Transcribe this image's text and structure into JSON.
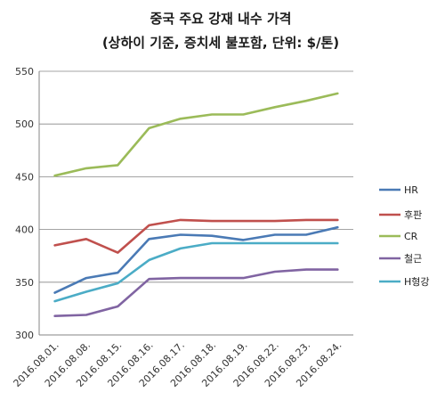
{
  "chart_data": {
    "type": "line",
    "title": "중국 주요 강재 내수 가격",
    "subtitle": "(상하이 기준, 증치세 불포함, 단위: $/톤)",
    "xlabel": "",
    "ylabel": "",
    "categories": [
      "2016.08.01.",
      "2016.08.08.",
      "2016.08.15.",
      "2016.08.16.",
      "2016.08.17.",
      "2016.08.18.",
      "2016.08.19.",
      "2016.08.22.",
      "2016.08.23.",
      "2016.08.24."
    ],
    "ylim": [
      300,
      550
    ],
    "yticks": [
      300,
      350,
      400,
      450,
      500,
      550
    ],
    "grid": true,
    "legend_position": "right",
    "series": [
      {
        "name": "HR",
        "color": "#4a7ab5",
        "values": [
          340,
          354,
          359,
          391,
          395,
          394,
          390,
          395,
          395,
          402
        ]
      },
      {
        "name": "후판",
        "color": "#c0504d",
        "values": [
          385,
          391,
          378,
          404,
          409,
          408,
          408,
          408,
          409,
          409
        ]
      },
      {
        "name": "CR",
        "color": "#9bbb59",
        "values": [
          451,
          458,
          461,
          496,
          505,
          509,
          509,
          516,
          522,
          529
        ]
      },
      {
        "name": "철근",
        "color": "#8064a2",
        "values": [
          318,
          319,
          327,
          353,
          354,
          354,
          354,
          360,
          362,
          362
        ]
      },
      {
        "name": "H형강",
        "color": "#4bacc6",
        "values": [
          332,
          341,
          349,
          371,
          382,
          387,
          387,
          387,
          387,
          387
        ]
      }
    ]
  }
}
